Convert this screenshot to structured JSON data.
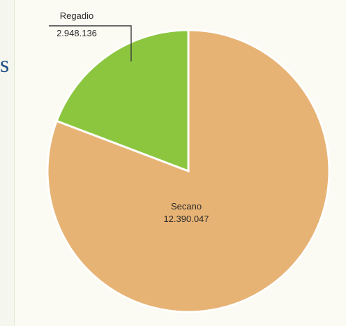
{
  "side_glyph": "s",
  "chart_data": {
    "type": "pie",
    "title": "",
    "slices": [
      {
        "label": "Regadio",
        "value_text": "2.948.136",
        "value": 2948136,
        "color": "#8cc63f"
      },
      {
        "label": "Secano",
        "value_text": "12.390.047",
        "value": 12390047,
        "color": "#e7b375"
      }
    ],
    "start": "12-o-clock",
    "direction": "counterclockwise-from-top-for-first-slice"
  }
}
